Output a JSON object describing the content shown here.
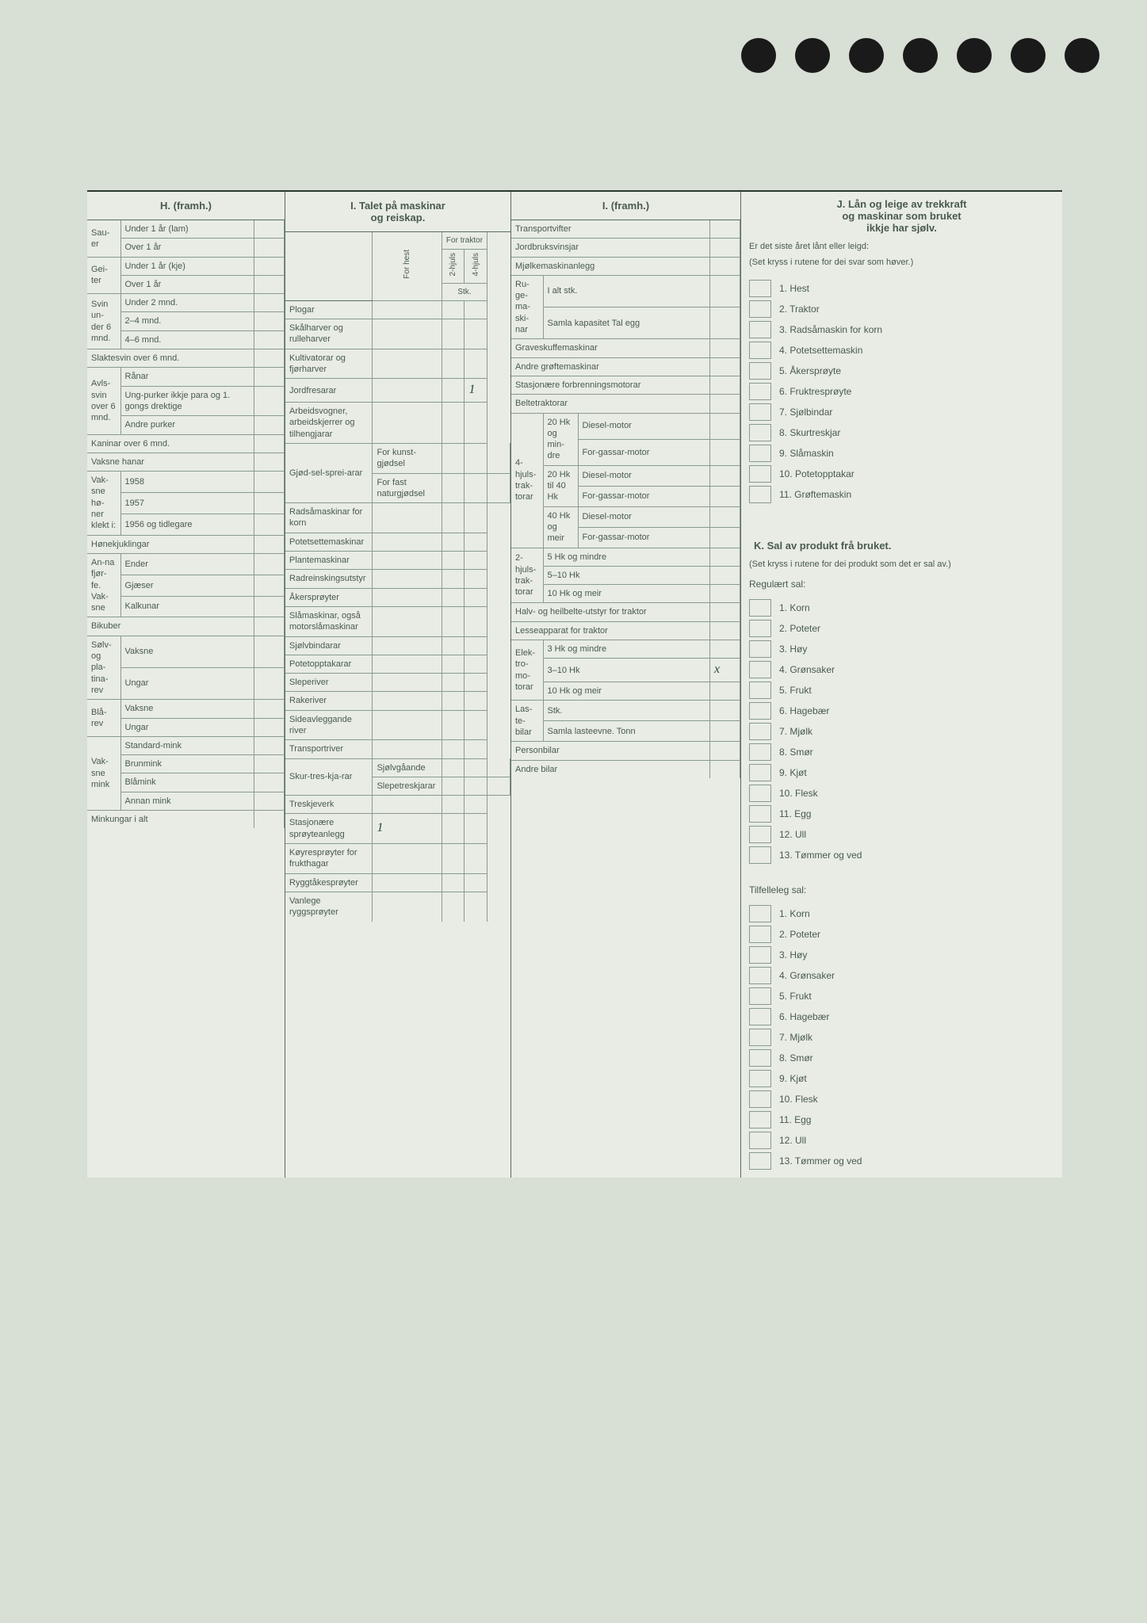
{
  "holes_count": 7,
  "sectionH": {
    "title": "H. (framh.)",
    "rows": [
      {
        "g": "Sau-er",
        "s": "Under 1 år (lam)"
      },
      {
        "g": "",
        "s": "Over 1 år"
      },
      {
        "g": "Gei-ter",
        "s": "Under 1 år (kje)"
      },
      {
        "g": "",
        "s": "Over 1 år"
      },
      {
        "g": "Svin un-der 6 mnd.",
        "s": "Under 2 mnd."
      },
      {
        "g": "",
        "s": "2–4 mnd."
      },
      {
        "g": "",
        "s": "4–6 mnd."
      },
      {
        "g2": "Slaktesvin over 6 mnd."
      },
      {
        "g": "Avls-svin over 6 mnd.",
        "s": "Rånar"
      },
      {
        "g": "",
        "s": "Ung-purker ikkje para og 1. gongs drektige"
      },
      {
        "g": "",
        "s": "Andre purker"
      },
      {
        "g2": "Kaninar over 6 mnd."
      },
      {
        "g2": "Vaksne hanar"
      },
      {
        "g": "Vak-sne hø-ner klekt i:",
        "s": "1958"
      },
      {
        "g": "",
        "s": "1957"
      },
      {
        "g": "",
        "s": "1956 og tidlegare"
      },
      {
        "g2": "Hønekjuklingar"
      },
      {
        "g": "An-na fjør-fe. Vak-sne",
        "s": "Ender"
      },
      {
        "g": "",
        "s": "Gjæser"
      },
      {
        "g": "",
        "s": "Kalkunar"
      },
      {
        "g2": "Bikuber"
      },
      {
        "g": "Sølv- og pla-tina-rev",
        "s": "Vaksne"
      },
      {
        "g": "",
        "s": "Ungar"
      },
      {
        "g": "Blå-rev",
        "s": "Vaksne"
      },
      {
        "g": "",
        "s": "Ungar"
      },
      {
        "g": "Vak-sne mink",
        "s": "Standard-mink"
      },
      {
        "g": "",
        "s": "Brunmink"
      },
      {
        "g": "",
        "s": "Blåmink"
      },
      {
        "g": "",
        "s": "Annan mink"
      },
      {
        "g2": "Minkungar i alt"
      }
    ]
  },
  "sectionI1": {
    "title_line1": "I. Talet på maskinar",
    "title_line2": "og reiskap.",
    "colheads": {
      "c1": "For hest",
      "c2a": "2-hjuls",
      "c2b": "4-hjuls",
      "c2top": "For traktor",
      "stk": "Stk."
    },
    "rows": [
      {
        "l": "Plogar"
      },
      {
        "l": "Skålharver og rulleharver"
      },
      {
        "l": "Kultivatorar og fjørharver"
      },
      {
        "l": "Jordfresarar",
        "v3": "1"
      },
      {
        "l": "Arbeidsvogner, arbeidskjerrer og tilhengjarar"
      },
      {
        "g": "Gjød-sel-sprei-arar",
        "l": "For kunst-gjødsel"
      },
      {
        "g": "",
        "l": "For fast naturgjødsel"
      },
      {
        "l": "Radsåmaskinar for korn"
      },
      {
        "l": "Potetsettemaskinar"
      },
      {
        "l": "Plantemaskinar"
      },
      {
        "l": "Radreinskingsutstyr"
      },
      {
        "l": "Åkersprøyter"
      },
      {
        "l": "Slåmaskinar, også motorslåmaskinar"
      },
      {
        "l": "Sjølvbindarar"
      },
      {
        "l": "Potetopptakarar"
      },
      {
        "l": "Sleperiver"
      },
      {
        "l": "Rakeriver"
      },
      {
        "l": "Sideavleggande river"
      },
      {
        "l": "Transportriver"
      },
      {
        "g": "Skur-tres-kja-rar",
        "l": "Sjølvgåande"
      },
      {
        "g": "",
        "l": "Slepetreskjarar"
      },
      {
        "l": "Treskjeverk"
      },
      {
        "l": "Stasjonære sprøyteanlegg",
        "v": "1"
      },
      {
        "l": "Køyresprøyter for frukthagar"
      },
      {
        "l": "Ryggtåkesprøyter"
      },
      {
        "l": "Vanlege ryggsprøyter"
      }
    ]
  },
  "sectionI2": {
    "title": "I. (framh.)",
    "rows_top": [
      {
        "l": "Transportvifter"
      },
      {
        "l": "Jordbruksvinsjar"
      },
      {
        "l": "Mjølkemaskinanlegg"
      }
    ],
    "ruge": {
      "g": "Ru-ge-ma-ski-nar",
      "r1": "I alt stk.",
      "r2": "Samla kapasitet Tal egg"
    },
    "rows_mid": [
      {
        "l": "Graveskuffemaskinar"
      },
      {
        "l": "Andre grøftemaskinar"
      },
      {
        "l": "Stasjonære forbrenningsmotorar"
      },
      {
        "l": "Beltetraktorar"
      }
    ],
    "trak4": {
      "g": "4-hjuls-trak-torar",
      "groups": [
        {
          "hk": "20 Hk og min-dre",
          "r": [
            "Diesel-motor",
            "For-gassar-motor"
          ]
        },
        {
          "hk": "20 Hk til 40 Hk",
          "r": [
            "Diesel-motor",
            "For-gassar-motor"
          ]
        },
        {
          "hk": "40 Hk og meir",
          "r": [
            "Diesel-motor",
            "For-gassar-motor"
          ]
        }
      ]
    },
    "trak2": {
      "g": "2-hjuls-trak-torar",
      "r": [
        "5 Hk og mindre",
        "5–10 Hk",
        "10 Hk og meir"
      ]
    },
    "rows_bot1": [
      {
        "l": "Halv- og heilbelte-utstyr for traktor"
      },
      {
        "l": "Lesseapparat for traktor"
      }
    ],
    "elek": {
      "g": "Elek-tro-mo-torar",
      "r": [
        "3 Hk og mindre",
        "3–10 Hk",
        "10 Hk og meir"
      ],
      "mark_idx": 1
    },
    "laste": {
      "g": "Las-te-bilar",
      "r": [
        "Stk.",
        "Samla lasteevne. Tonn"
      ]
    },
    "rows_bot2": [
      {
        "l": "Personbilar"
      },
      {
        "l": "Andre bilar"
      }
    ]
  },
  "sectionJ": {
    "title_l1": "J. Lån og leige av trekkraft",
    "title_l2": "og maskinar som bruket",
    "title_l3": "ikkje har sjølv.",
    "q": "Er det siste året lånt eller leigd:",
    "note": "(Set kryss i rutene for dei svar som høver.)",
    "items": [
      "1. Hest",
      "2. Traktor",
      "3. Radsåmaskin for korn",
      "4. Potetsettemaskin",
      "5. Åkersprøyte",
      "6. Fruktresprøyte",
      "7. Sjølbindar",
      "8. Skurtreskjar",
      "9. Slåmaskin",
      "10. Potetopptakar",
      "11. Grøftemaskin"
    ]
  },
  "sectionK": {
    "title": "K. Sal av produkt frå bruket.",
    "note": "(Set kryss i rutene for dei produkt som det er sal av.)",
    "reg_title": "Regulært sal:",
    "reg_items": [
      "1. Korn",
      "2. Poteter",
      "3. Høy",
      "4. Grønsaker",
      "5. Frukt",
      "6. Hagebær",
      "7. Mjølk",
      "8. Smør",
      "9. Kjøt",
      "10. Flesk",
      "11. Egg",
      "12. Ull",
      "13. Tømmer og ved"
    ],
    "tilf_title": "Tilfelleleg sal:",
    "tilf_items": [
      "1. Korn",
      "2. Poteter",
      "3. Høy",
      "4. Grønsaker",
      "5. Frukt",
      "6. Hagebær",
      "7. Mjølk",
      "8. Smør",
      "9. Kjøt",
      "10. Flesk",
      "11. Egg",
      "12. Ull",
      "13. Tømmer og ved"
    ]
  }
}
